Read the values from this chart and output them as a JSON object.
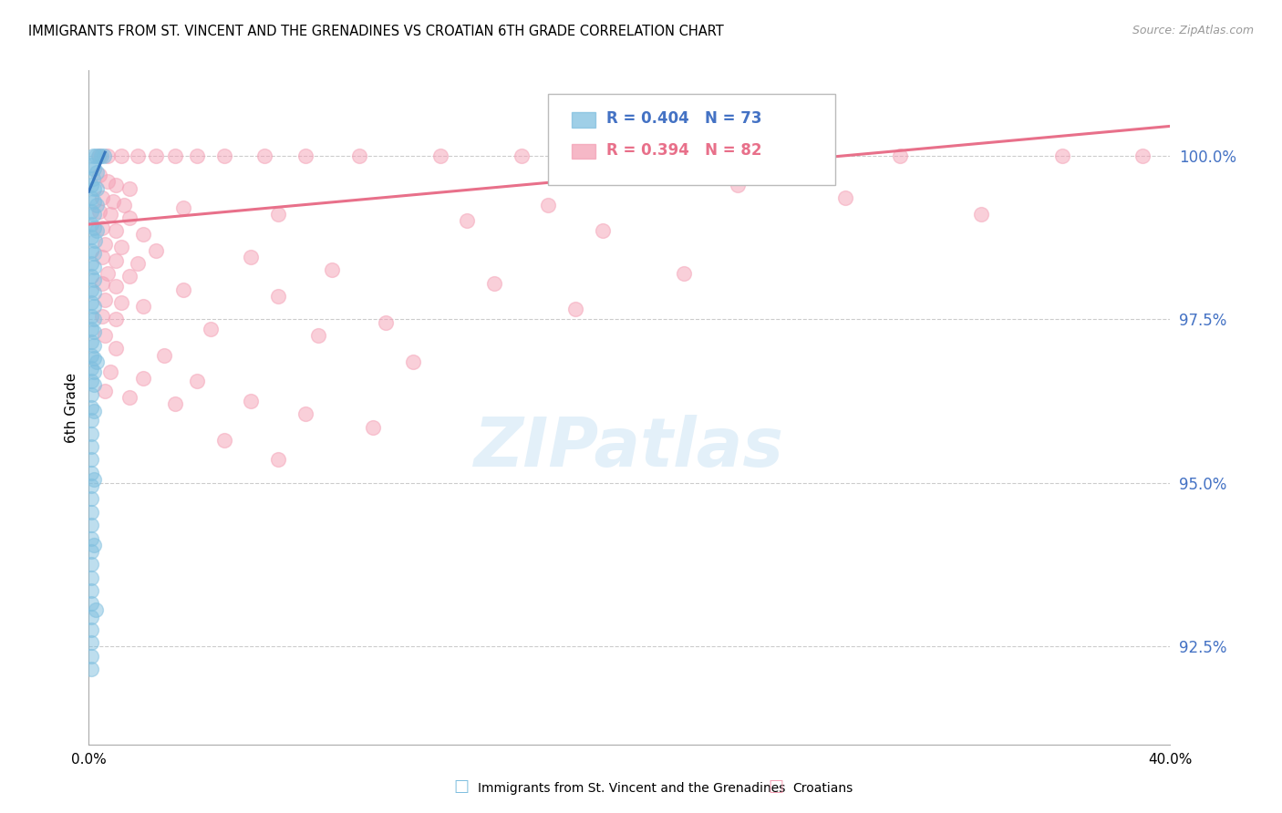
{
  "title": "IMMIGRANTS FROM ST. VINCENT AND THE GRENADINES VS CROATIAN 6TH GRADE CORRELATION CHART",
  "source": "Source: ZipAtlas.com",
  "ylabel": "6th Grade",
  "yticks": [
    92.5,
    95.0,
    97.5,
    100.0
  ],
  "ytick_labels": [
    "92.5%",
    "95.0%",
    "97.5%",
    "100.0%"
  ],
  "xlim": [
    0.0,
    40.0
  ],
  "ylim": [
    91.0,
    101.3
  ],
  "legend_blue_label": "Immigrants from St. Vincent and the Grenadines",
  "legend_pink_label": "Croatians",
  "blue_color": "#7fbfdf",
  "pink_color": "#f4a0b5",
  "blue_line_color": "#3a7abf",
  "pink_line_color": "#e8708a",
  "blue_scatter": [
    [
      0.15,
      100.0
    ],
    [
      0.25,
      100.0
    ],
    [
      0.35,
      100.0
    ],
    [
      0.45,
      100.0
    ],
    [
      0.55,
      100.0
    ],
    [
      0.1,
      99.85
    ],
    [
      0.2,
      99.8
    ],
    [
      0.3,
      99.75
    ],
    [
      0.15,
      99.65
    ],
    [
      0.1,
      99.55
    ],
    [
      0.2,
      99.5
    ],
    [
      0.3,
      99.5
    ],
    [
      0.1,
      99.35
    ],
    [
      0.18,
      99.3
    ],
    [
      0.28,
      99.25
    ],
    [
      0.1,
      99.15
    ],
    [
      0.2,
      99.1
    ],
    [
      0.1,
      98.95
    ],
    [
      0.2,
      98.9
    ],
    [
      0.3,
      98.85
    ],
    [
      0.1,
      98.75
    ],
    [
      0.22,
      98.7
    ],
    [
      0.1,
      98.55
    ],
    [
      0.2,
      98.5
    ],
    [
      0.1,
      98.35
    ],
    [
      0.18,
      98.3
    ],
    [
      0.1,
      98.15
    ],
    [
      0.2,
      98.1
    ],
    [
      0.1,
      97.95
    ],
    [
      0.2,
      97.9
    ],
    [
      0.1,
      97.75
    ],
    [
      0.18,
      97.7
    ],
    [
      0.1,
      97.55
    ],
    [
      0.2,
      97.5
    ],
    [
      0.1,
      97.35
    ],
    [
      0.18,
      97.3
    ],
    [
      0.1,
      97.15
    ],
    [
      0.2,
      97.1
    ],
    [
      0.1,
      96.95
    ],
    [
      0.2,
      96.9
    ],
    [
      0.3,
      96.85
    ],
    [
      0.1,
      96.75
    ],
    [
      0.18,
      96.7
    ],
    [
      0.1,
      96.55
    ],
    [
      0.2,
      96.5
    ],
    [
      0.1,
      96.35
    ],
    [
      0.1,
      96.15
    ],
    [
      0.2,
      96.1
    ],
    [
      0.1,
      95.95
    ],
    [
      0.1,
      95.75
    ],
    [
      0.1,
      95.55
    ],
    [
      0.1,
      95.35
    ],
    [
      0.1,
      95.15
    ],
    [
      0.1,
      94.95
    ],
    [
      0.1,
      94.75
    ],
    [
      0.1,
      94.55
    ],
    [
      0.1,
      94.35
    ],
    [
      0.1,
      94.15
    ],
    [
      0.1,
      93.95
    ],
    [
      0.1,
      93.75
    ],
    [
      0.1,
      93.55
    ],
    [
      0.1,
      93.35
    ],
    [
      0.1,
      93.15
    ],
    [
      0.1,
      92.95
    ],
    [
      0.1,
      92.75
    ],
    [
      0.1,
      92.55
    ],
    [
      0.1,
      92.35
    ],
    [
      0.1,
      92.15
    ],
    [
      0.18,
      95.05
    ],
    [
      0.2,
      94.05
    ],
    [
      0.25,
      93.05
    ]
  ],
  "pink_scatter": [
    [
      0.4,
      100.0
    ],
    [
      0.7,
      100.0
    ],
    [
      1.2,
      100.0
    ],
    [
      1.8,
      100.0
    ],
    [
      2.5,
      100.0
    ],
    [
      3.2,
      100.0
    ],
    [
      4.0,
      100.0
    ],
    [
      5.0,
      100.0
    ],
    [
      6.5,
      100.0
    ],
    [
      8.0,
      100.0
    ],
    [
      10.0,
      100.0
    ],
    [
      13.0,
      100.0
    ],
    [
      16.0,
      100.0
    ],
    [
      20.0,
      100.0
    ],
    [
      25.0,
      100.0
    ],
    [
      30.0,
      100.0
    ],
    [
      36.0,
      100.0
    ],
    [
      39.0,
      100.0
    ],
    [
      0.4,
      99.7
    ],
    [
      0.7,
      99.6
    ],
    [
      1.0,
      99.55
    ],
    [
      1.5,
      99.5
    ],
    [
      0.5,
      99.35
    ],
    [
      0.9,
      99.3
    ],
    [
      1.3,
      99.25
    ],
    [
      0.4,
      99.15
    ],
    [
      0.8,
      99.1
    ],
    [
      1.5,
      99.05
    ],
    [
      0.5,
      98.9
    ],
    [
      1.0,
      98.85
    ],
    [
      2.0,
      98.8
    ],
    [
      0.6,
      98.65
    ],
    [
      1.2,
      98.6
    ],
    [
      2.5,
      98.55
    ],
    [
      0.5,
      98.45
    ],
    [
      1.0,
      98.4
    ],
    [
      1.8,
      98.35
    ],
    [
      0.7,
      98.2
    ],
    [
      1.5,
      98.15
    ],
    [
      0.5,
      98.05
    ],
    [
      1.0,
      98.0
    ],
    [
      3.5,
      97.95
    ],
    [
      0.6,
      97.8
    ],
    [
      1.2,
      97.75
    ],
    [
      2.0,
      97.7
    ],
    [
      0.5,
      97.55
    ],
    [
      1.0,
      97.5
    ],
    [
      4.5,
      97.35
    ],
    [
      0.6,
      97.25
    ],
    [
      1.0,
      97.05
    ],
    [
      2.8,
      96.95
    ],
    [
      0.8,
      96.7
    ],
    [
      2.0,
      96.6
    ],
    [
      0.6,
      96.4
    ],
    [
      1.5,
      96.3
    ],
    [
      3.2,
      96.2
    ],
    [
      3.5,
      99.2
    ],
    [
      7.0,
      99.1
    ],
    [
      14.0,
      99.0
    ],
    [
      6.0,
      98.45
    ],
    [
      9.0,
      98.25
    ],
    [
      17.0,
      99.25
    ],
    [
      24.0,
      99.55
    ],
    [
      19.0,
      98.85
    ],
    [
      28.0,
      99.35
    ],
    [
      11.0,
      97.45
    ],
    [
      15.0,
      98.05
    ],
    [
      7.0,
      97.85
    ],
    [
      8.5,
      97.25
    ],
    [
      12.0,
      96.85
    ],
    [
      18.0,
      97.65
    ],
    [
      4.0,
      96.55
    ],
    [
      6.0,
      96.25
    ],
    [
      8.0,
      96.05
    ],
    [
      10.5,
      95.85
    ],
    [
      5.0,
      95.65
    ],
    [
      7.0,
      95.35
    ],
    [
      22.0,
      98.2
    ],
    [
      33.0,
      99.1
    ]
  ],
  "blue_trendline_x": [
    0.0,
    0.6
  ],
  "blue_trendline_y": [
    99.45,
    100.05
  ],
  "pink_trendline_x": [
    0.0,
    40.0
  ],
  "pink_trendline_y": [
    98.95,
    100.45
  ]
}
